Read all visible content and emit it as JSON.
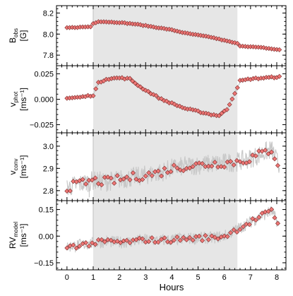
{
  "figure": {
    "xlabel": "Hours",
    "x_ticks": [
      "0",
      "1",
      "2",
      "3",
      "4",
      "5",
      "6",
      "7",
      "8"
    ]
  },
  "chart_data": [
    {
      "type": "scatter",
      "ylabel_main": "B",
      "ylabel_sub": "obs",
      "ylabel_unit": "[G]",
      "xlim": [
        -0.4,
        8.35
      ],
      "ylim": [
        7.7,
        8.27
      ],
      "y_ticks": [
        7.8,
        8.0,
        8.2
      ],
      "y_tick_labels": [
        "7.8",
        "8.0",
        "8.2"
      ],
      "shaded_region": [
        1.0,
        6.5
      ],
      "noise_amp": 0.006,
      "noise_spikes": [
        [
          1.0,
          8.27
        ]
      ],
      "anchors_x": [
        0.0,
        0.9,
        1.0,
        1.2,
        1.6,
        2.0,
        2.6,
        3.0,
        3.5,
        4.0,
        4.5,
        5.0,
        5.5,
        6.0,
        6.5,
        6.55,
        7.0,
        7.5,
        8.1
      ],
      "anchors_y": [
        8.06,
        8.07,
        8.1,
        8.12,
        8.115,
        8.11,
        8.095,
        8.08,
        8.06,
        8.04,
        8.01,
        7.99,
        7.97,
        7.94,
        7.91,
        7.89,
        7.88,
        7.87,
        7.85
      ],
      "marker_step": 0.1
    },
    {
      "type": "scatter",
      "ylabel_main": "v",
      "ylabel_sub": "phot",
      "ylabel_unit": "[ms⁻¹]",
      "xlim": [
        -0.4,
        8.35
      ],
      "ylim": [
        -0.033,
        0.033
      ],
      "y_ticks": [
        -0.025,
        0.0,
        0.025
      ],
      "y_tick_labels": [
        "−0.025",
        "0.000",
        "0.025"
      ],
      "shaded_region": [
        1.0,
        6.5
      ],
      "noise_amp": 0.0015,
      "noise_spikes": [],
      "anchors_x": [
        0.0,
        0.5,
        1.0,
        1.2,
        1.5,
        2.0,
        2.4,
        2.8,
        3.2,
        3.6,
        4.0,
        4.5,
        5.0,
        5.5,
        5.8,
        6.1,
        6.4,
        6.6,
        7.0,
        7.5,
        8.1
      ],
      "anchors_y": [
        0.001,
        0.002,
        0.004,
        0.016,
        0.02,
        0.021,
        0.02,
        0.012,
        0.006,
        0.0,
        -0.004,
        -0.009,
        -0.012,
        -0.015,
        -0.016,
        -0.01,
        0.006,
        0.018,
        0.02,
        0.021,
        0.022
      ],
      "marker_step": 0.1
    },
    {
      "type": "scatter",
      "ylabel_main": "v",
      "ylabel_sub": "conv",
      "ylabel_unit": "[ms⁻¹]",
      "xlim": [
        -0.4,
        8.35
      ],
      "ylim": [
        2.755,
        3.06
      ],
      "y_ticks": [
        2.8,
        2.9,
        3.0
      ],
      "y_tick_labels": [
        "2.8",
        "2.9",
        "3.0"
      ],
      "shaded_region": [
        1.0,
        6.5
      ],
      "noise_amp": 0.045,
      "noise_spikes": [
        [
          1.0,
          3.05
        ],
        [
          0.85,
          2.77
        ]
      ],
      "anchors_x": [
        0.0,
        0.5,
        1.0,
        1.5,
        2.0,
        2.5,
        3.0,
        3.5,
        4.0,
        4.5,
        5.0,
        5.5,
        6.0,
        6.5,
        7.0,
        7.5,
        7.8,
        8.1
      ],
      "anchors_y": [
        2.815,
        2.83,
        2.845,
        2.84,
        2.85,
        2.86,
        2.87,
        2.88,
        2.9,
        2.91,
        2.915,
        2.92,
        2.925,
        2.93,
        2.945,
        2.97,
        2.985,
        2.91
      ],
      "marker_step": 0.12
    },
    {
      "type": "scatter",
      "ylabel_main": "RV",
      "ylabel_sub": "model",
      "ylabel_unit": "[ms⁻¹]",
      "xlim": [
        -0.4,
        8.35
      ],
      "ylim": [
        -0.19,
        0.2
      ],
      "y_ticks": [
        -0.15,
        0.0,
        0.15
      ],
      "y_tick_labels": [
        "−0.15",
        "0.00",
        "0.15"
      ],
      "shaded_region": [
        1.0,
        6.5
      ],
      "noise_amp": 0.035,
      "noise_spikes": [
        [
          1.0,
          0.18
        ]
      ],
      "anchors_x": [
        0.0,
        0.5,
        1.0,
        1.5,
        2.0,
        2.5,
        3.0,
        3.5,
        4.0,
        4.5,
        5.0,
        5.5,
        6.0,
        6.5,
        7.0,
        7.5,
        7.8,
        8.1
      ],
      "anchors_y": [
        -0.06,
        -0.05,
        -0.04,
        -0.03,
        -0.035,
        -0.03,
        -0.02,
        -0.025,
        -0.02,
        -0.015,
        -0.01,
        -0.01,
        0.0,
        0.04,
        0.08,
        0.12,
        0.14,
        0.06
      ],
      "marker_step": 0.12
    }
  ]
}
